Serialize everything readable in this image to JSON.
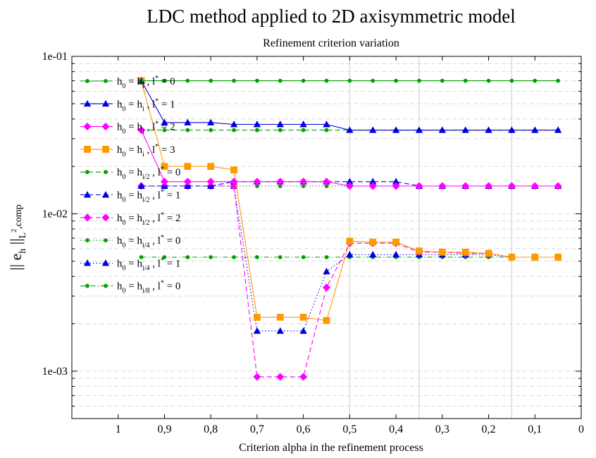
{
  "chart_data": {
    "type": "line",
    "title": "LDC method applied to 2D axisymmetric model",
    "subtitle": "Refinement criterion variation",
    "xlabel": "Criterion alpha in the refinement process",
    "ylabel": "|| e_h ||_{L²,comp}",
    "ylabel_parts": {
      "pre": "|| e",
      "sub": "h",
      "mid": " ||",
      "sub2": "L",
      "sup": "2",
      "post": ",comp"
    },
    "x_scale": "reversed",
    "xlim": [
      1.1,
      0.0
    ],
    "y_scale": "log",
    "ylim": [
      0.0005,
      0.1
    ],
    "x_ticks": [
      {
        "value": 1.0,
        "label": "1"
      },
      {
        "value": 0.9,
        "label": "0,9"
      },
      {
        "value": 0.8,
        "label": "0,8"
      },
      {
        "value": 0.7,
        "label": "0,7"
      },
      {
        "value": 0.6,
        "label": "0,6"
      },
      {
        "value": 0.5,
        "label": "0,5"
      },
      {
        "value": 0.4,
        "label": "0,4"
      },
      {
        "value": 0.3,
        "label": "0,3"
      },
      {
        "value": 0.2,
        "label": "0,2"
      },
      {
        "value": 0.1,
        "label": "0,1"
      },
      {
        "value": 0.0,
        "label": "0"
      }
    ],
    "y_ticks": [
      {
        "value": 0.001,
        "label": "1e-03"
      },
      {
        "value": 0.01,
        "label": "1e-02"
      },
      {
        "value": 0.1,
        "label": "1e-01"
      }
    ],
    "vertical_gridlines": [
      0.5,
      0.35,
      0.15
    ],
    "grid": "horizontal dashed minor lines",
    "legend_position": "left",
    "x": [
      0.95,
      0.9,
      0.85,
      0.8,
      0.75,
      0.7,
      0.65,
      0.6,
      0.55,
      0.5,
      0.45,
      0.4,
      0.35,
      0.3,
      0.25,
      0.2,
      0.15,
      0.1,
      0.05
    ],
    "series": [
      {
        "name": "h0 = hi , l* = 0",
        "label": {
          "sub1": "0",
          "mid": "i",
          "l": "0"
        },
        "color": "#00a000",
        "dash": "solid",
        "marker": "circle",
        "markerSize": 2.5,
        "values": [
          0.07,
          0.07,
          0.07,
          0.07,
          0.07,
          0.07,
          0.07,
          0.07,
          0.07,
          0.07,
          0.07,
          0.07,
          0.07,
          0.07,
          0.07,
          0.07,
          0.07,
          0.07,
          0.07
        ]
      },
      {
        "name": "h0 = hi , l* = 1",
        "label": {
          "sub1": "0",
          "mid": "i",
          "l": "1"
        },
        "color": "#0000dd",
        "dash": "solid",
        "marker": "triangle",
        "markerSize": 4.5,
        "values": [
          0.07,
          0.038,
          0.038,
          0.038,
          0.037,
          0.037,
          0.037,
          0.037,
          0.037,
          0.034,
          0.034,
          0.034,
          0.034,
          0.034,
          0.034,
          0.034,
          0.034,
          0.034,
          0.034
        ]
      },
      {
        "name": "h0 = hi , l* = 2",
        "label": {
          "sub1": "0",
          "mid": "i",
          "l": "2"
        },
        "color": "#ff00ff",
        "dash": "solid",
        "marker": "diamond",
        "markerSize": 5,
        "values": [
          0.034,
          0.016,
          0.016,
          0.016,
          0.016,
          0.016,
          0.016,
          0.016,
          0.016,
          0.015,
          0.015,
          0.015,
          0.015,
          0.015,
          0.015,
          0.015,
          0.015,
          0.015,
          0.015
        ]
      },
      {
        "name": "h0 = hi , l* = 3",
        "label": {
          "sub1": "0",
          "mid": "i",
          "l": "3"
        },
        "color": "#ff9900",
        "dash": "solid",
        "marker": "square",
        "markerSize": 4.5,
        "values": [
          0.07,
          0.02,
          0.02,
          0.02,
          0.019,
          0.0022,
          0.0022,
          0.0022,
          0.0021,
          0.0067,
          0.0066,
          0.0066,
          0.0058,
          0.0057,
          0.0057,
          0.0056,
          0.0053,
          0.0053,
          0.0053
        ]
      },
      {
        "name": "h0 = hi/2 , l* = 0",
        "label": {
          "sub1": "0",
          "mid": "i/2",
          "l": "0"
        },
        "color": "#00a000",
        "dash": "dashed",
        "marker": "circle",
        "markerSize": 2.5,
        "values": [
          0.034,
          0.034,
          0.034,
          0.034,
          0.034,
          0.034,
          0.034,
          0.034,
          0.034,
          0.034,
          0.034,
          0.034,
          0.034,
          0.034,
          0.034,
          0.034,
          0.034,
          0.034,
          0.034
        ]
      },
      {
        "name": "h0 = hi/2 , l* = 1",
        "label": {
          "sub1": "0",
          "mid": "i/2",
          "l": "1"
        },
        "color": "#0000dd",
        "dash": "dashed",
        "marker": "triangle",
        "markerSize": 4.5,
        "values": [
          0.015,
          0.015,
          0.015,
          0.015,
          0.016,
          0.016,
          0.016,
          0.016,
          0.016,
          0.016,
          0.016,
          0.016,
          0.015,
          0.015,
          0.015,
          0.015,
          0.015,
          0.015,
          0.015
        ]
      },
      {
        "name": "h0 = hi/2 , l* = 2",
        "label": {
          "sub1": "0",
          "mid": "i/2",
          "l": "2"
        },
        "color": "#ff00ff",
        "dash": "dashed",
        "marker": "diamond",
        "markerSize": 5,
        "values": [
          0.015,
          0.015,
          0.015,
          0.015,
          0.015,
          0.00092,
          0.00092,
          0.00092,
          0.0034,
          0.0065,
          0.0065,
          0.0065,
          0.0057,
          0.0057,
          0.0056,
          0.0056,
          0.0053,
          0.0053,
          0.0053
        ]
      },
      {
        "name": "h0 = hi/4 , l* = 0",
        "label": {
          "sub1": "0",
          "mid": "i/4",
          "l": "0"
        },
        "color": "#00a000",
        "dash": "dotted",
        "marker": "circle",
        "markerSize": 2.5,
        "values": [
          0.015,
          0.015,
          0.015,
          0.015,
          0.015,
          0.015,
          0.015,
          0.015,
          0.015,
          0.015,
          0.015,
          0.015,
          0.015,
          0.015,
          0.015,
          0.015,
          0.015,
          0.015,
          0.015
        ]
      },
      {
        "name": "h0 = hi/4 , l* = 1",
        "label": {
          "sub1": "0",
          "mid": "i/4",
          "l": "1"
        },
        "color": "#0000dd",
        "dash": "dotted",
        "marker": "triangle",
        "markerSize": 4.5,
        "values": [
          0.015,
          0.015,
          0.015,
          0.015,
          0.015,
          0.0018,
          0.0018,
          0.0018,
          0.0043,
          0.0055,
          0.0055,
          0.0055,
          0.0055,
          0.0055,
          0.0055,
          0.0055,
          0.0053,
          0.0053,
          0.0053
        ]
      },
      {
        "name": "h0 = hi/8 , l* = 0",
        "label": {
          "sub1": "0",
          "mid": "i/8",
          "l": "0"
        },
        "color": "#00a000",
        "dash": "dashdot",
        "marker": "circle",
        "markerSize": 2.5,
        "values": [
          0.0053,
          0.0053,
          0.0053,
          0.0053,
          0.0053,
          0.0053,
          0.0053,
          0.0053,
          0.0053,
          0.0053,
          0.0053,
          0.0053,
          0.0053,
          0.0053,
          0.0053,
          0.0053,
          0.0053,
          0.0053,
          0.0053
        ]
      }
    ]
  }
}
